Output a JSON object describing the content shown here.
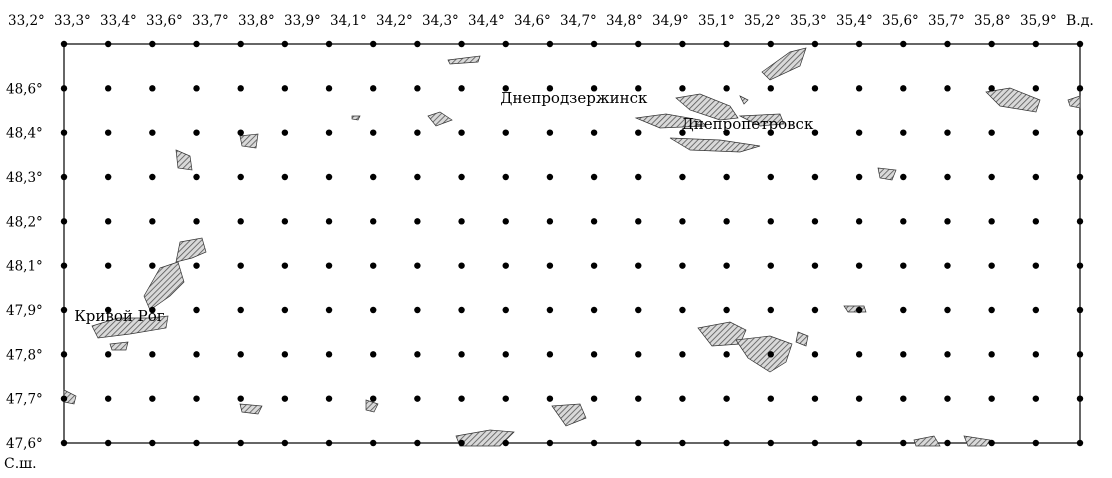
{
  "map": {
    "lon_axis_unit": "В.д.",
    "lat_axis_unit": "С.ш.",
    "lon_ticks": [
      "33,2°",
      "33,3°",
      "33,4°",
      "33,6°",
      "33,7°",
      "33,8°",
      "33,9°",
      "34,1°",
      "34,2°",
      "34,3°",
      "34,4°",
      "34,6°",
      "34,7°",
      "34,8°",
      "34,9°",
      "35,1°",
      "35,2°",
      "35,3°",
      "35,4°",
      "35,6°",
      "35,7°",
      "35,8°",
      "35,9°"
    ],
    "lat_ticks": [
      "48,6°",
      "48,4°",
      "48,3°",
      "48,2°",
      "48,1°",
      "47,9°",
      "47,8°",
      "47,7°",
      "47,6°"
    ],
    "grid_columns": 24,
    "grid_rows": 10,
    "places": [
      {
        "name": "Днепродзержинск",
        "lon": 34.58,
        "lat": 48.52
      },
      {
        "name": "Днепропетровск",
        "lon": 35.05,
        "lat": 48.45
      },
      {
        "name": "Кривой Рог",
        "lon": 33.35,
        "lat": 47.93
      }
    ],
    "hatch_colors": {
      "stroke": "#555555",
      "fill": "#d9d9d9",
      "outline": "#333333"
    }
  }
}
